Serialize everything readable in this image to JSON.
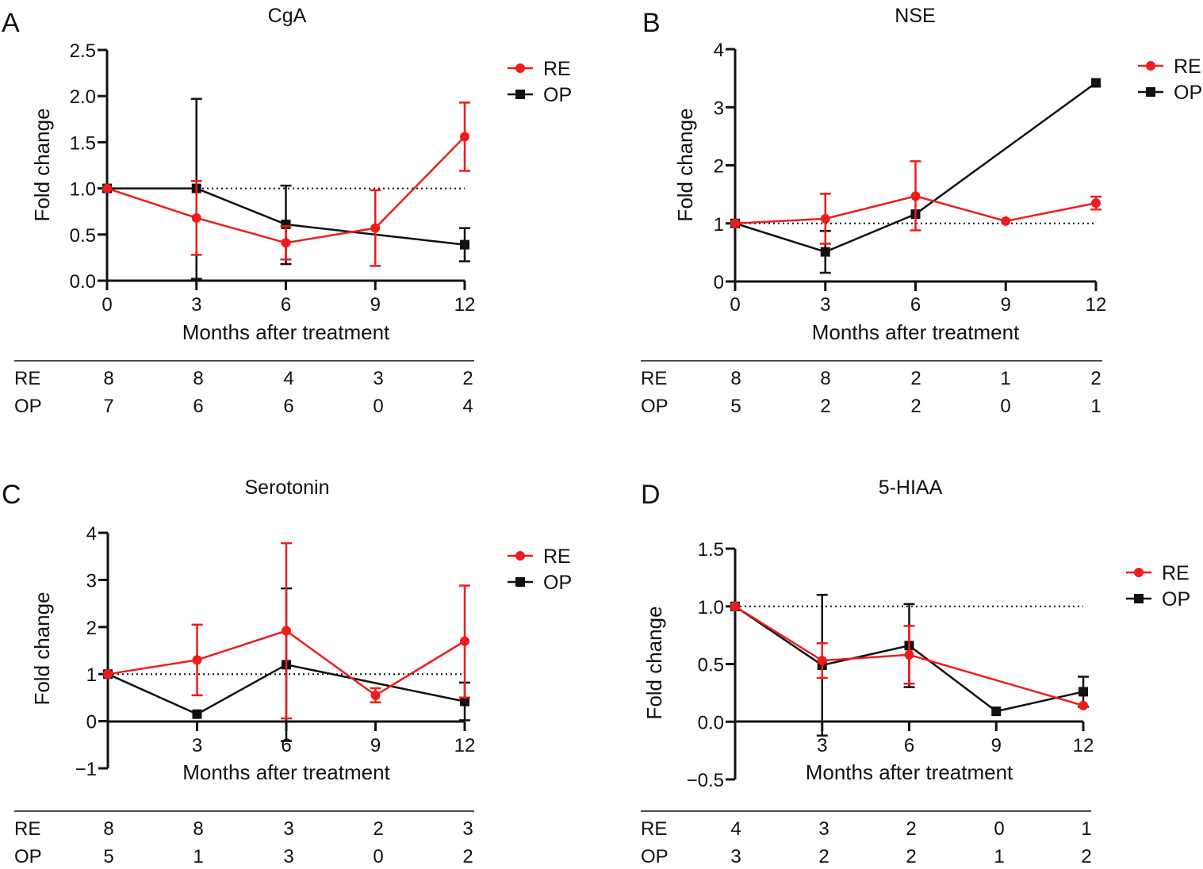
{
  "colors": {
    "RE": "#ee1c1c",
    "OP": "#111111",
    "reference_line": "#111111"
  },
  "chart_data": [
    {
      "panel": "A",
      "type": "line",
      "title": "CgA",
      "xlabel": "Months after treatment",
      "ylabel": "Fold change",
      "x_ticks": [
        "0",
        "3",
        "6",
        "9",
        "12"
      ],
      "y_ticks": [
        "0.0",
        "0.5",
        "1.0",
        "1.5",
        "2.0",
        "2.5"
      ],
      "xlim": [
        0,
        12
      ],
      "ylim": [
        0,
        2.5
      ],
      "reference_line": 1.0,
      "legend": "top-right",
      "series": [
        {
          "name": "RE",
          "marker": "circle",
          "points": [
            {
              "x": 0,
              "y": 1.0
            },
            {
              "x": 3,
              "y": 0.68,
              "err_low": 0.28,
              "err_high": 1.08
            },
            {
              "x": 6,
              "y": 0.41,
              "err_low": 0.23,
              "err_high": 0.59
            },
            {
              "x": 9,
              "y": 0.57,
              "err_low": 0.16,
              "err_high": 0.98
            },
            {
              "x": 12,
              "y": 1.56,
              "err_low": 1.19,
              "err_high": 1.93
            }
          ]
        },
        {
          "name": "OP",
          "marker": "square",
          "points": [
            {
              "x": 0,
              "y": 1.0
            },
            {
              "x": 3,
              "y": 1.0,
              "err_low": 0.02,
              "err_high": 1.97
            },
            {
              "x": 6,
              "y": 0.61,
              "err_low": 0.18,
              "err_high": 1.03
            },
            {
              "x": 12,
              "y": 0.39,
              "err_low": 0.21,
              "err_high": 0.57
            }
          ]
        }
      ],
      "counts": {
        "RE": [
          "8",
          "8",
          "4",
          "3",
          "2"
        ],
        "OP": [
          "7",
          "6",
          "6",
          "0",
          "4"
        ]
      }
    },
    {
      "panel": "B",
      "type": "line",
      "title": "NSE",
      "xlabel": "Months after treatment",
      "ylabel": "Fold change",
      "x_ticks": [
        "0",
        "3",
        "6",
        "9",
        "12"
      ],
      "y_ticks": [
        "0",
        "1",
        "2",
        "3",
        "4"
      ],
      "xlim": [
        0,
        12
      ],
      "ylim": [
        0,
        4
      ],
      "reference_line": 1.0,
      "legend": "top-right",
      "series": [
        {
          "name": "RE",
          "marker": "circle",
          "points": [
            {
              "x": 0,
              "y": 1.0
            },
            {
              "x": 3,
              "y": 1.08,
              "err_low": 0.65,
              "err_high": 1.51
            },
            {
              "x": 6,
              "y": 1.47,
              "err_low": 0.88,
              "err_high": 2.07
            },
            {
              "x": 9,
              "y": 1.04
            },
            {
              "x": 12,
              "y": 1.35,
              "err_low": 1.24,
              "err_high": 1.46
            }
          ]
        },
        {
          "name": "OP",
          "marker": "square",
          "points": [
            {
              "x": 0,
              "y": 1.0
            },
            {
              "x": 3,
              "y": 0.51,
              "err_low": 0.15,
              "err_high": 0.87
            },
            {
              "x": 6,
              "y": 1.16
            },
            {
              "x": 12,
              "y": 3.42
            }
          ]
        }
      ],
      "counts": {
        "RE": [
          "8",
          "8",
          "2",
          "1",
          "2"
        ],
        "OP": [
          "5",
          "2",
          "2",
          "0",
          "1"
        ]
      }
    },
    {
      "panel": "C",
      "type": "line",
      "title": "Serotonin",
      "xlabel": "Months after treatment",
      "ylabel": "Fold change",
      "x_ticks": [
        "3",
        "6",
        "9",
        "12"
      ],
      "y_ticks": [
        "−1",
        "0",
        "1",
        "2",
        "3",
        "4"
      ],
      "xlim": [
        0,
        12
      ],
      "ylim": [
        -1,
        4
      ],
      "reference_line": 1.0,
      "legend": "top-right",
      "series": [
        {
          "name": "RE",
          "marker": "circle",
          "points": [
            {
              "x": 0,
              "y": 1.0
            },
            {
              "x": 3,
              "y": 1.3,
              "err_low": 0.55,
              "err_high": 2.05
            },
            {
              "x": 6,
              "y": 1.92,
              "err_low": 0.06,
              "err_high": 3.78
            },
            {
              "x": 9,
              "y": 0.55,
              "err_low": 0.4,
              "err_high": 0.7
            },
            {
              "x": 12,
              "y": 1.7,
              "err_low": 0.5,
              "err_high": 2.88
            }
          ]
        },
        {
          "name": "OP",
          "marker": "square",
          "points": [
            {
              "x": 0,
              "y": 1.0
            },
            {
              "x": 3,
              "y": 0.15
            },
            {
              "x": 6,
              "y": 1.2,
              "err_low": -0.42,
              "err_high": 2.82
            },
            {
              "x": 12,
              "y": 0.42,
              "err_low": 0.02,
              "err_high": 0.82
            }
          ]
        }
      ],
      "counts": {
        "RE": [
          "8",
          "8",
          "3",
          "2",
          "3"
        ],
        "OP": [
          "5",
          "1",
          "3",
          "0",
          "2"
        ]
      }
    },
    {
      "panel": "D",
      "type": "line",
      "title": "5-HIAA",
      "xlabel": "Months after treatment",
      "ylabel": "Fold change",
      "x_ticks": [
        "3",
        "6",
        "9",
        "12"
      ],
      "y_ticks": [
        "−0.5",
        "0.0",
        "0.5",
        "1.0",
        "1.5"
      ],
      "xlim": [
        0,
        12
      ],
      "ylim": [
        -0.5,
        1.5
      ],
      "reference_line": 1.0,
      "legend": "top-right",
      "series": [
        {
          "name": "RE",
          "marker": "circle",
          "points": [
            {
              "x": 0,
              "y": 1.0
            },
            {
              "x": 3,
              "y": 0.53,
              "err_low": 0.38,
              "err_high": 0.68
            },
            {
              "x": 6,
              "y": 0.58,
              "err_low": 0.33,
              "err_high": 0.83
            },
            {
              "x": 12,
              "y": 0.14
            }
          ]
        },
        {
          "name": "OP",
          "marker": "square",
          "points": [
            {
              "x": 0,
              "y": 1.0
            },
            {
              "x": 3,
              "y": 0.49,
              "err_low": -0.12,
              "err_high": 1.1
            },
            {
              "x": 6,
              "y": 0.66,
              "err_low": 0.3,
              "err_high": 1.02
            },
            {
              "x": 9,
              "y": 0.09
            },
            {
              "x": 12,
              "y": 0.26,
              "err_low": 0.13,
              "err_high": 0.39
            }
          ]
        }
      ],
      "counts": {
        "RE": [
          "4",
          "3",
          "2",
          "0",
          "1"
        ],
        "OP": [
          "3",
          "2",
          "2",
          "1",
          "2"
        ]
      }
    }
  ]
}
